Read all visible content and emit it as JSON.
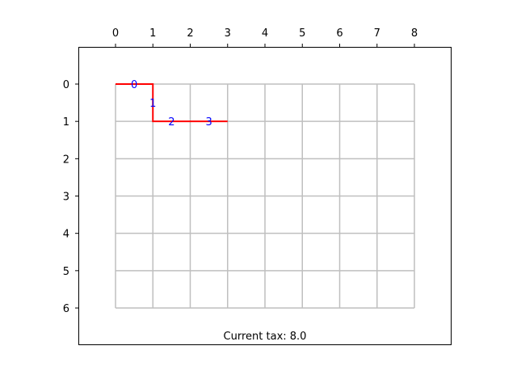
{
  "board": {
    "cols": 8,
    "rows": 6,
    "x_ticks": [
      "0",
      "1",
      "2",
      "3",
      "4",
      "5",
      "6",
      "7",
      "8"
    ],
    "y_ticks": [
      "0",
      "1",
      "2",
      "3",
      "4",
      "5",
      "6"
    ],
    "path": [
      [
        0,
        0
      ],
      [
        1,
        0
      ],
      [
        1,
        1
      ],
      [
        2,
        1
      ],
      [
        3,
        1
      ]
    ],
    "edge_labels": [
      "0",
      "1",
      "2",
      "3"
    ],
    "grid_color": "#bfbfbf",
    "path_color": "#ff0000",
    "label_color": "#0000ff"
  },
  "status": {
    "tax_text": "Current tax: 8.0"
  }
}
